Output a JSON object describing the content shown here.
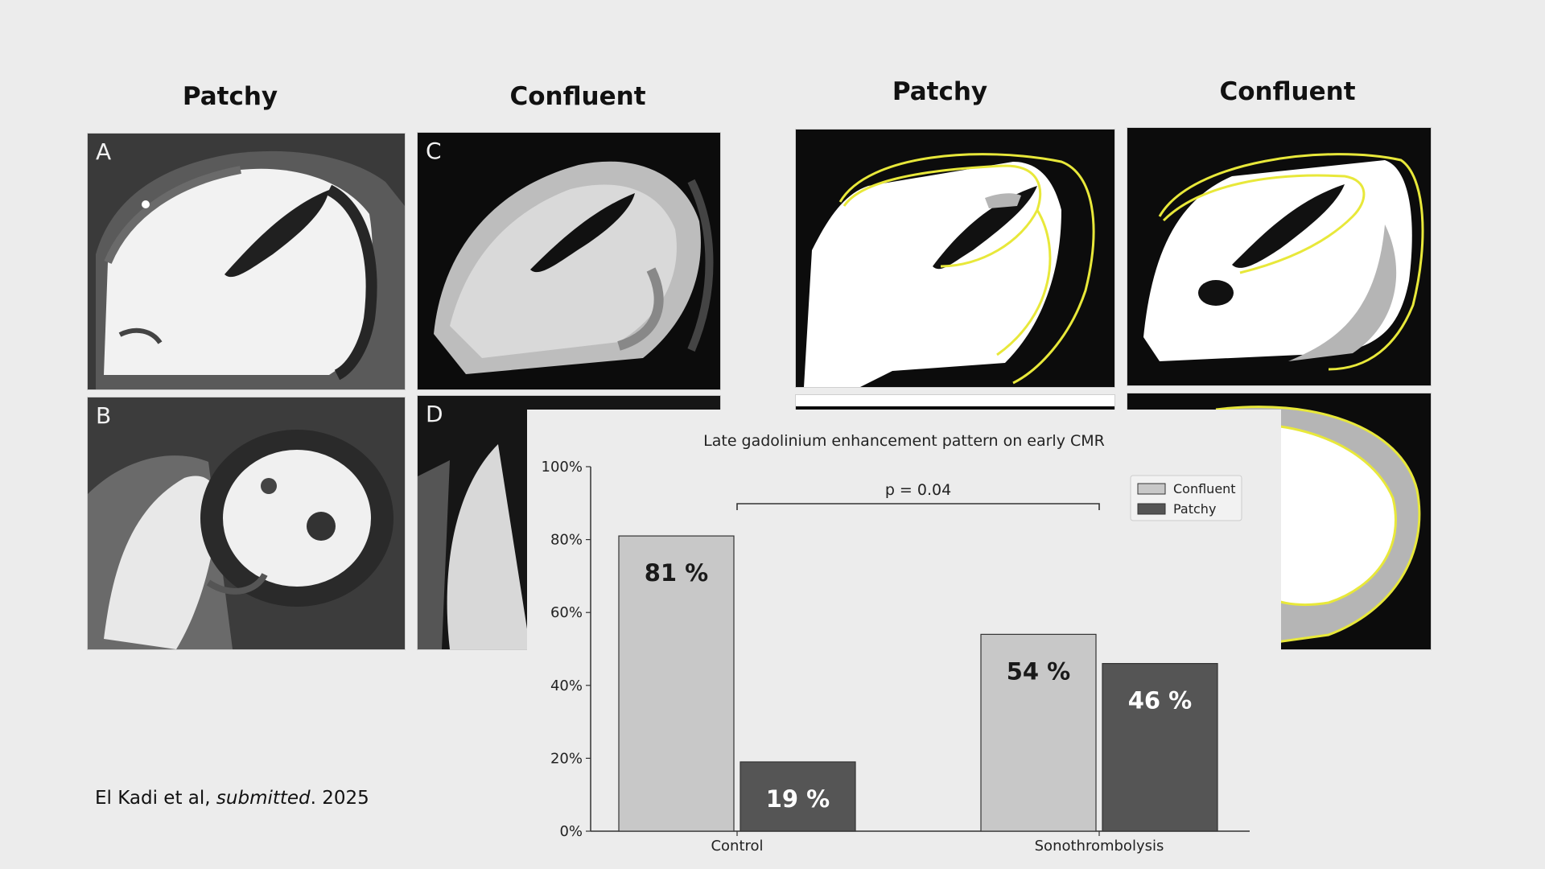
{
  "left_figure": {
    "headings": [
      "Patchy",
      "Confluent"
    ],
    "panels": [
      {
        "letter": "A"
      },
      {
        "letter": "C"
      },
      {
        "letter": "B"
      },
      {
        "letter": "D"
      }
    ]
  },
  "right_figure": {
    "headings": [
      "Patchy",
      "Confluent"
    ]
  },
  "citation": {
    "authors": "El Kadi et al, ",
    "status": "submitted",
    "year": ". 2025"
  },
  "colors": {
    "background": "#ececec",
    "confluent": "#c8c8c8",
    "patchy": "#555555",
    "contour": "#e8e83a",
    "mri_dark": "#080808"
  },
  "chart_data": {
    "type": "bar",
    "title": "Late gadolinium enhancement pattern on early CMR",
    "categories": [
      "Control",
      "Sonothrombolysis"
    ],
    "series": [
      {
        "name": "Confluent",
        "values": [
          81,
          54
        ],
        "labels": [
          "81 %",
          "54 %"
        ]
      },
      {
        "name": "Patchy",
        "values": [
          19,
          46
        ],
        "labels": [
          "19 %",
          "46 %"
        ]
      }
    ],
    "ylim": [
      0,
      100
    ],
    "yticks": [
      "0%",
      "20%",
      "40%",
      "60%",
      "80%",
      "100%"
    ],
    "annotation": "p = 0.04",
    "legend_position": "top-right",
    "xlabel": "",
    "ylabel": "",
    "grid": false
  }
}
